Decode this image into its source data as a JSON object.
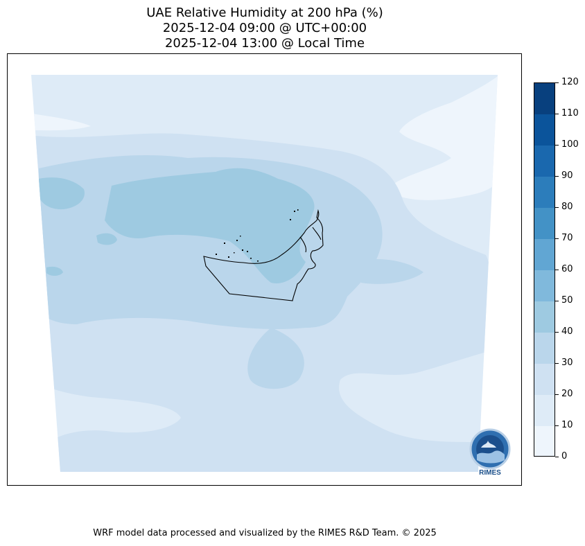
{
  "title": {
    "line1": "UAE Relative Humidity at 200 hPa (%)",
    "line2": "2025-12-04 09:00 @ UTC+00:00",
    "line3": "2025-12-04 13:00 @ Local Time"
  },
  "colorbar": {
    "labels": [
      "0",
      "10",
      "20",
      "30",
      "40",
      "50",
      "60",
      "70",
      "80",
      "90",
      "100",
      "110",
      "120"
    ],
    "colors": [
      "#eef5fc",
      "#deebf7",
      "#cfe1f2",
      "#bad6eb",
      "#9ecae1",
      "#80b9dc",
      "#61a6d3",
      "#4392c6",
      "#2c7dbb",
      "#1a68ae",
      "#0b549b",
      "#08407e"
    ],
    "min": 0,
    "max": 120,
    "step": 10
  },
  "footer": "WRF model data processed and visualized by the RIMES R&D Team. © 2025",
  "logo": {
    "text": "RIMES",
    "icon": "rimes-logo-icon"
  },
  "map": {
    "region_icon": "uae-boundary-outline"
  }
}
